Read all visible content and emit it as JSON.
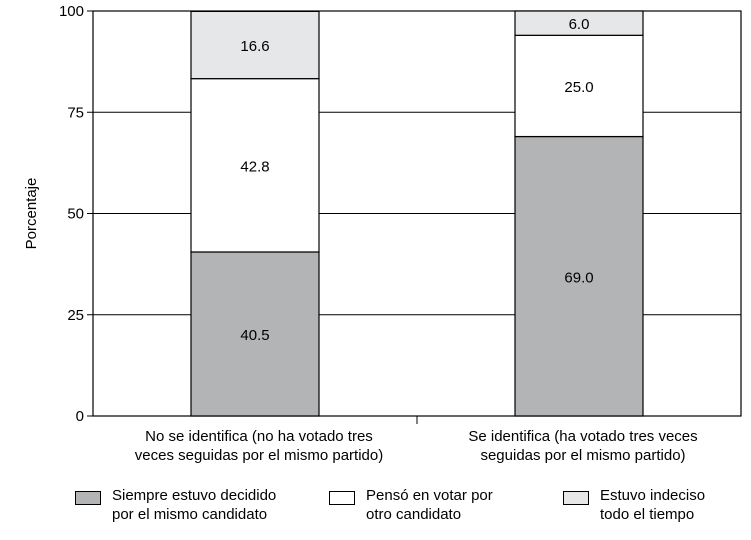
{
  "chart_data": {
    "type": "bar",
    "stacked": true,
    "title": "",
    "xlabel": "",
    "ylabel": "Porcentaje",
    "ylim": [
      0,
      100
    ],
    "yticks": [
      0,
      25,
      50,
      75,
      100
    ],
    "grid": true,
    "legend_position": "bottom",
    "categories": [
      "No se identifica (no ha votado tres\nveces seguidas por el mismo partido)",
      "Se identifica (ha votado tres veces\nseguidas por el mismo partido)"
    ],
    "series": [
      {
        "name": "Siempre estuvo decidido\npor el mismo candidato",
        "values": [
          40.5,
          69.0
        ],
        "labels": [
          "40.5",
          "69.0"
        ],
        "color": "#b2b4b6"
      },
      {
        "name": "Pensó en votar por\notro candidato",
        "values": [
          42.8,
          25.0
        ],
        "labels": [
          "42.8",
          "25.0"
        ],
        "color": "#ffffff"
      },
      {
        "name": "Estuvo indeciso\ntodo el tiempo",
        "values": [
          16.6,
          6.0
        ],
        "labels": [
          "16.6",
          "6.0"
        ],
        "color": "#e6e7e8"
      }
    ]
  }
}
